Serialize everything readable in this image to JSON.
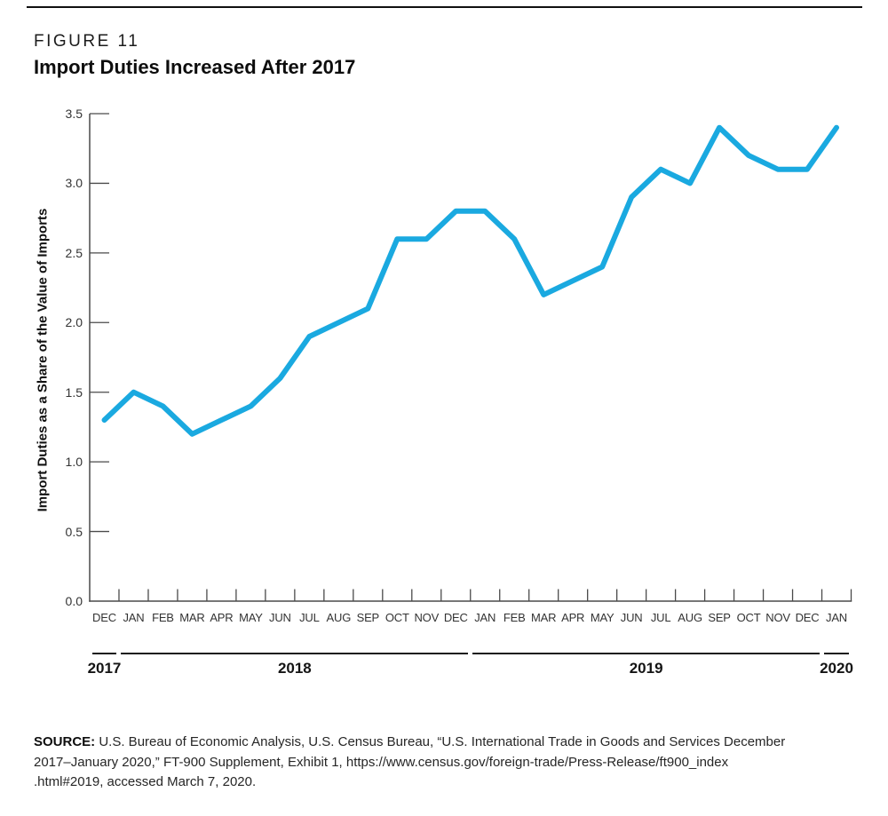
{
  "figure": {
    "label": "FIGURE 11",
    "title": "Import Duties Increased After 2017"
  },
  "chart_data": {
    "type": "line",
    "title": "Import Duties Increased After 2017",
    "xlabel": "",
    "ylabel": "Import Duties as a Share of the Value of Imports",
    "categories": [
      "Dec 2017",
      "Jan 2018",
      "Feb 2018",
      "Mar 2018",
      "Apr 2018",
      "May 2018",
      "Jun 2018",
      "Jul 2018",
      "Aug 2018",
      "Sep 2018",
      "Oct 2018",
      "Nov 2018",
      "Dec 2018",
      "Jan 2019",
      "Feb 2019",
      "Mar 2019",
      "Apr 2019",
      "May 2019",
      "Jun 2019",
      "Jul 2019",
      "Aug 2019",
      "Sep 2019",
      "Oct 2019",
      "Nov 2019",
      "Dec 2019",
      "Jan 2020"
    ],
    "month_labels": [
      "DEC",
      "JAN",
      "FEB",
      "MAR",
      "APR",
      "MAY",
      "JUN",
      "JUL",
      "AUG",
      "SEP",
      "OCT",
      "NOV",
      "DEC",
      "JAN",
      "FEB",
      "MAR",
      "APR",
      "MAY",
      "JUN",
      "JUL",
      "AUG",
      "SEP",
      "OCT",
      "NOV",
      "DEC",
      "JAN"
    ],
    "values": [
      1.3,
      1.5,
      1.4,
      1.2,
      1.3,
      1.4,
      1.6,
      1.9,
      2.0,
      2.1,
      2.6,
      2.6,
      2.8,
      2.8,
      2.6,
      2.2,
      2.3,
      2.4,
      2.9,
      3.1,
      3.0,
      3.4,
      3.2,
      3.1,
      3.1,
      3.4
    ],
    "year_sections": [
      {
        "label": "2017",
        "months": 1
      },
      {
        "label": "2018",
        "months": 12
      },
      {
        "label": "2019",
        "months": 12
      },
      {
        "label": "2020",
        "months": 1
      }
    ],
    "ylim": [
      0.0,
      3.5
    ],
    "ytick_labels": [
      "0.0",
      "0.5",
      "1.0",
      "1.5",
      "2.0",
      "2.5",
      "3.0",
      "3.5"
    ],
    "grid": false,
    "legend": "none",
    "line_color": "#1aa9e0",
    "axis_color": "#4a4a4a"
  },
  "source": {
    "label": "SOURCE:",
    "lines": [
      "U.S. Bureau of Economic Analysis, U.S. Census Bureau, “U.S. International Trade in Goods and Services December",
      "2017–January 2020,” FT-900 Supplement, Exhibit 1, https://www.census.gov/foreign-trade/Press-Release/ft900_index",
      ".html#2019, accessed March 7, 2020."
    ]
  }
}
